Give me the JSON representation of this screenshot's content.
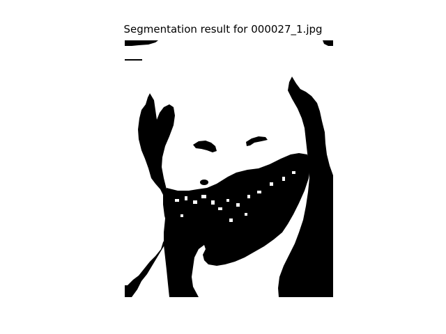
{
  "figure": {
    "title": "Segmentation result for 000027_1.jpg"
  },
  "image": {
    "kind": "binary segmentation mask",
    "foreground_color": "#000000",
    "background_color": "#ffffff",
    "axes_visible": false
  }
}
